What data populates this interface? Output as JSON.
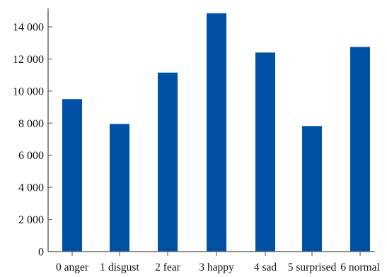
{
  "chart_data": {
    "type": "bar",
    "title": "",
    "xlabel": "",
    "ylabel": "",
    "categories": [
      "0 anger",
      "1 disgust",
      "2 fear",
      "3 happy",
      "4 sad",
      "5 surprised",
      "6 normal"
    ],
    "values": [
      9500,
      7950,
      11150,
      14850,
      12400,
      7820,
      12750
    ],
    "ylim": [
      0,
      15000
    ],
    "yticks": [
      0,
      2000,
      4000,
      6000,
      8000,
      10000,
      12000,
      14000
    ],
    "ytick_labels": [
      "0",
      "2 000",
      "4 000",
      "6 000",
      "8 000",
      "10 000",
      "12 000",
      "14 000"
    ],
    "grid": false,
    "legend": "none",
    "bar_color": "#0050a6",
    "axis_color": "#666666"
  }
}
